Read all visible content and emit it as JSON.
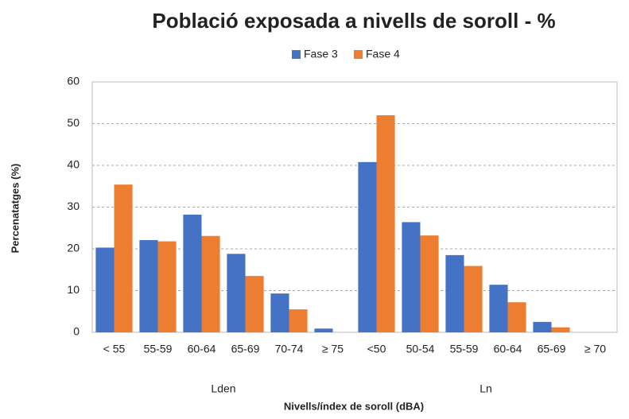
{
  "chart_data": {
    "type": "bar",
    "title": "Població exposada a nivells de soroll - %",
    "x_label": "Nivells/índex de soroll (dBA)",
    "y_label": "Percenatatges (%)",
    "groups": [
      {
        "name": "Lden",
        "categories": [
          "< 55",
          "55-59",
          "60-64",
          "65-69",
          "70-74",
          "≥ 75"
        ]
      },
      {
        "name": "Ln",
        "categories": [
          "<50",
          "50-54",
          "55-59",
          "60-64",
          "65-69",
          "≥ 70"
        ]
      }
    ],
    "series": [
      {
        "name": "Fase 3",
        "color": "#4472c4",
        "values": [
          20.3,
          22.1,
          28.2,
          18.8,
          9.3,
          0.9,
          40.8,
          26.4,
          18.5,
          11.4,
          2.5,
          0
        ]
      },
      {
        "name": "Fase 4",
        "color": "#ed7d31",
        "values": [
          35.4,
          21.8,
          23.1,
          13.5,
          5.5,
          0,
          52.0,
          23.2,
          15.9,
          7.2,
          1.2,
          0
        ]
      }
    ],
    "ylim": [
      0,
      60
    ],
    "yticks": [
      0,
      10,
      20,
      30,
      40,
      50,
      60
    ],
    "grid": true,
    "legend": "top"
  }
}
